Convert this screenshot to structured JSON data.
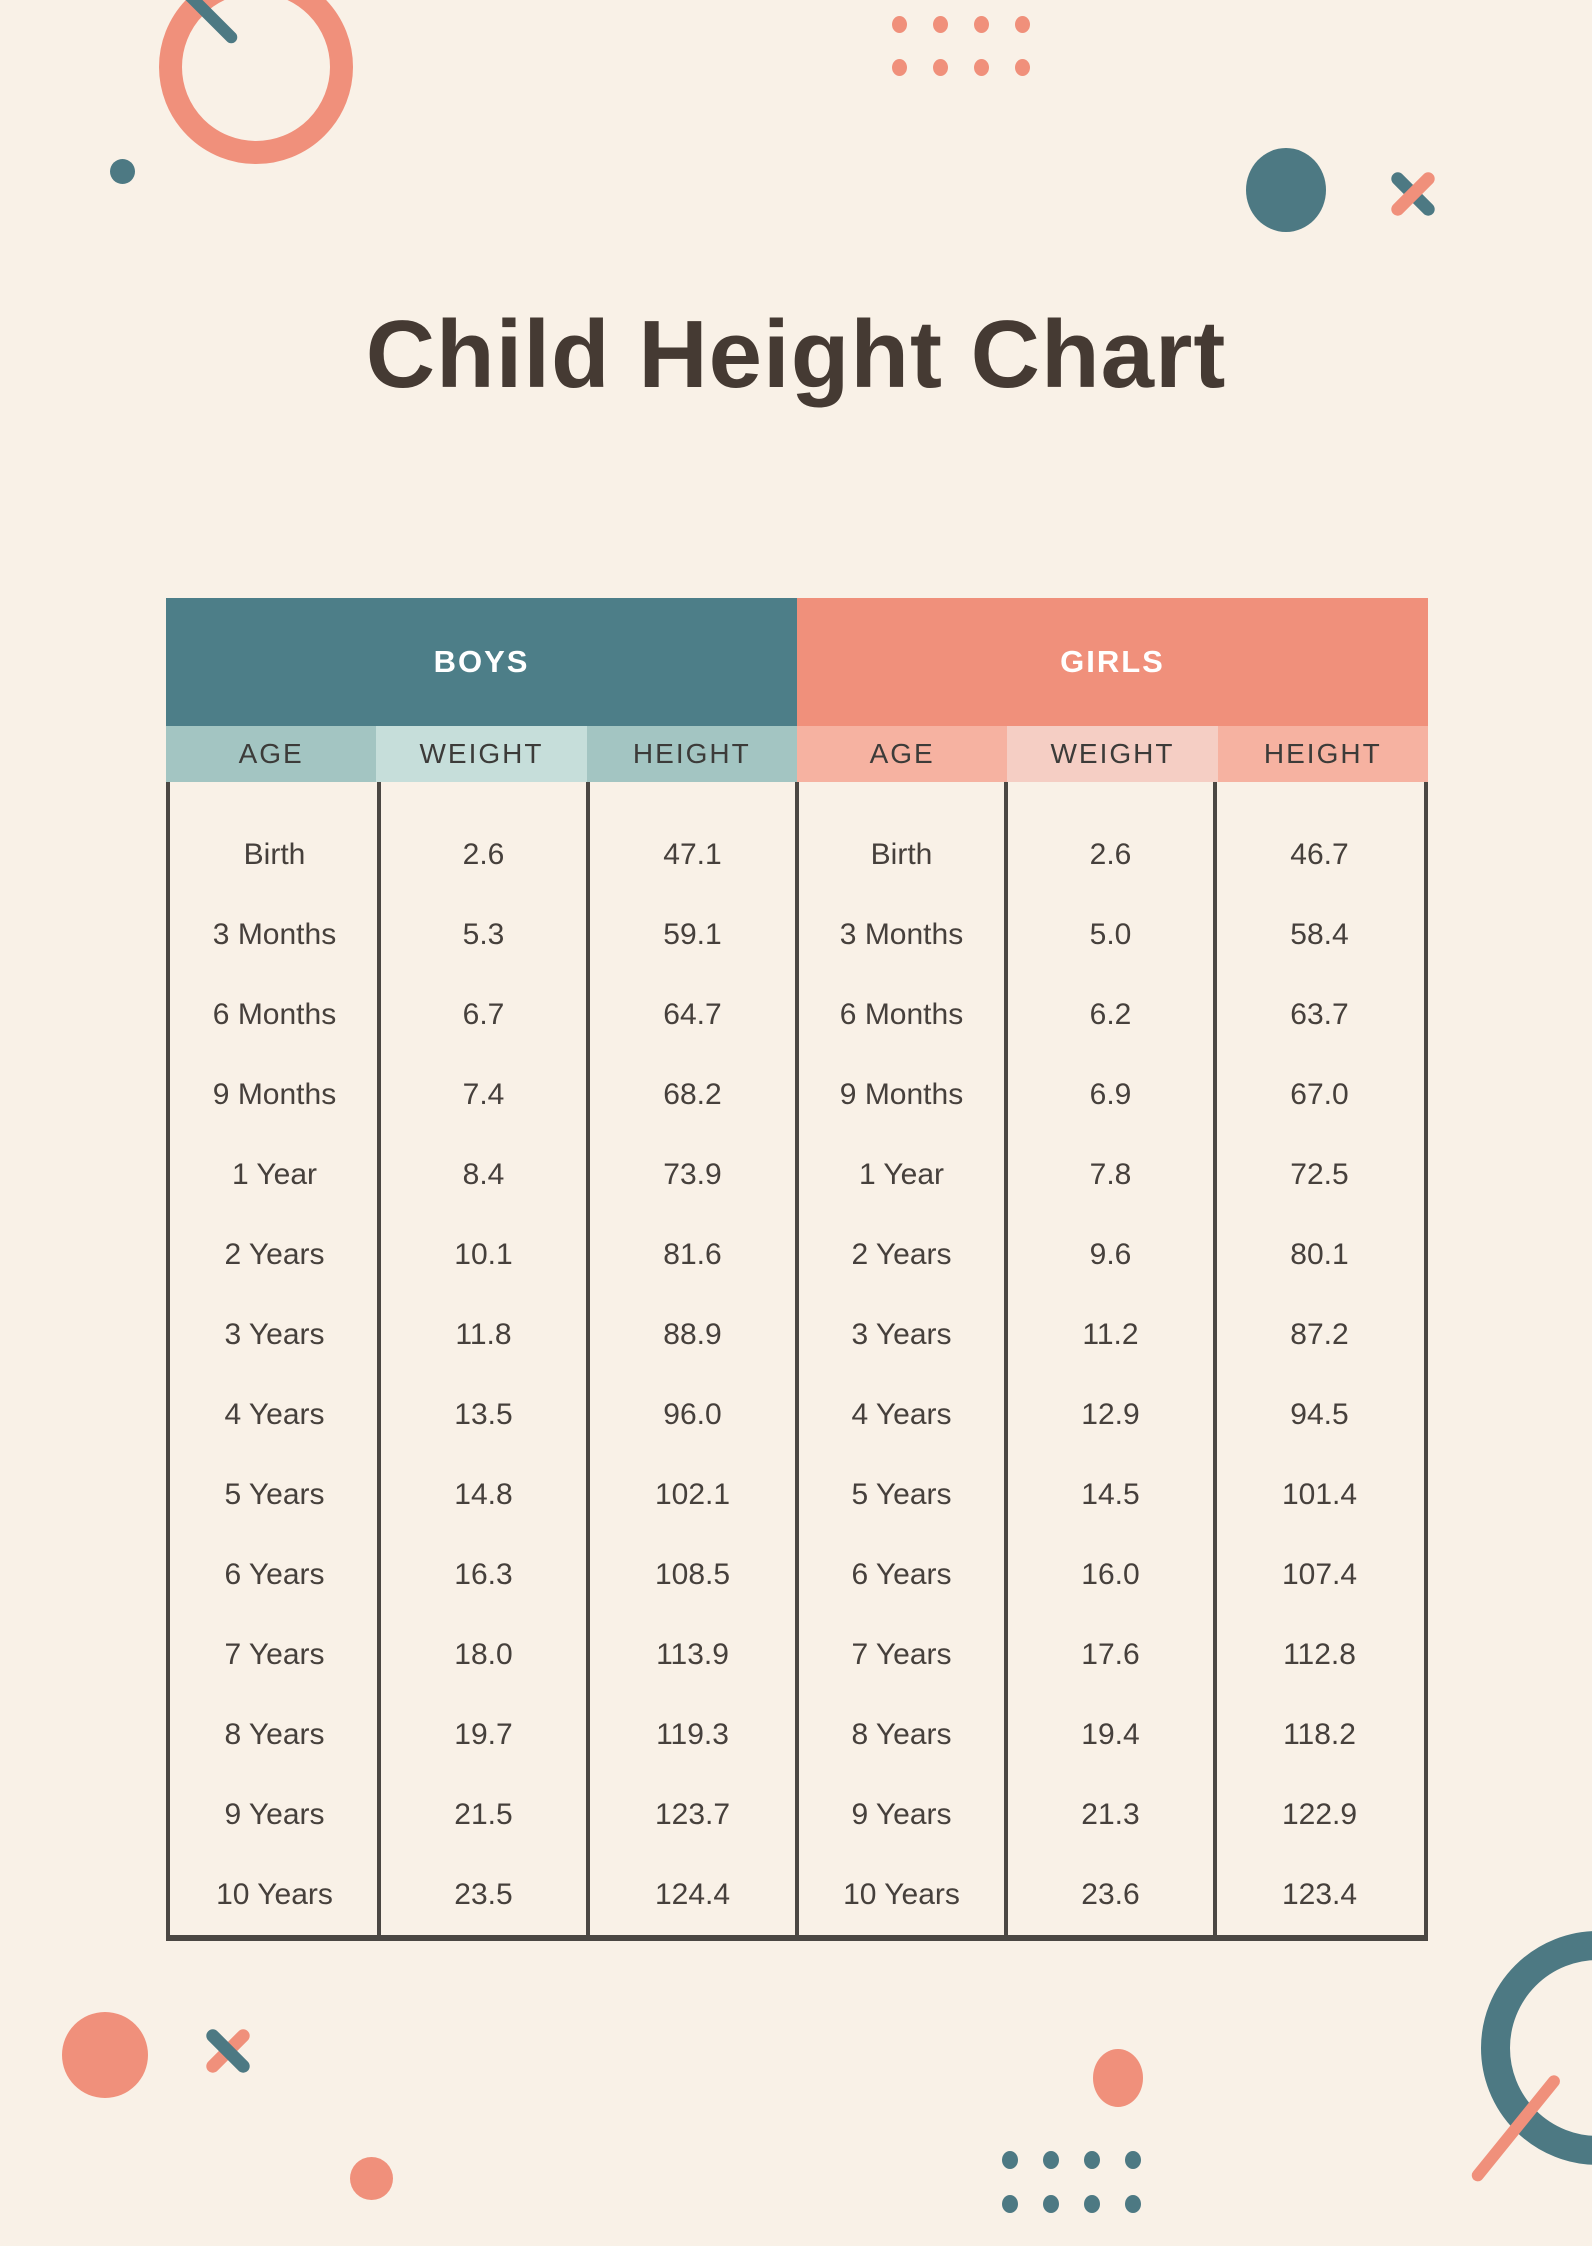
{
  "title": "Child Height Chart",
  "colors": {
    "background": "#F9F1E7",
    "teal_header": "#4D7E88",
    "coral_header": "#F0907B",
    "teal_deco": "#4D7983",
    "teal_sub_medium": "#A3C5C2",
    "teal_sub_light": "#C6DEDA",
    "pink_sub_medium": "#F6B2A1",
    "pink_sub_light": "#F5CEC4",
    "header_text": "#FFFFFF",
    "body_text": "#46403C",
    "title_text": "#453A33",
    "border_dark": "#4B4743"
  },
  "table": {
    "groups": {
      "boys_label": "BOYS",
      "girls_label": "GIRLS"
    },
    "subheader_cells": [
      {
        "label": "AGE",
        "tone": "teal-medium"
      },
      {
        "label": "WEIGHT",
        "tone": "teal-light"
      },
      {
        "label": "HEIGHT",
        "tone": "teal-medium"
      },
      {
        "label": "AGE",
        "tone": "pink-medium"
      },
      {
        "label": "WEIGHT",
        "tone": "pink-light"
      },
      {
        "label": "HEIGHT",
        "tone": "pink-medium"
      }
    ],
    "rows": [
      [
        "Birth",
        "2.6",
        "47.1",
        "Birth",
        "2.6",
        "46.7"
      ],
      [
        "3 Months",
        "5.3",
        "59.1",
        "3 Months",
        "5.0",
        "58.4"
      ],
      [
        "6 Months",
        "6.7",
        "64.7",
        "6 Months",
        "6.2",
        "63.7"
      ],
      [
        "9 Months",
        "7.4",
        "68.2",
        "9 Months",
        "6.9",
        "67.0"
      ],
      [
        "1 Year",
        "8.4",
        "73.9",
        "1 Year",
        "7.8",
        "72.5"
      ],
      [
        "2 Years",
        "10.1",
        "81.6",
        "2 Years",
        "9.6",
        "80.1"
      ],
      [
        "3 Years",
        "11.8",
        "88.9",
        "3 Years",
        "11.2",
        "87.2"
      ],
      [
        "4 Years",
        "13.5",
        "96.0",
        "4 Years",
        "12.9",
        "94.5"
      ],
      [
        "5 Years",
        "14.8",
        "102.1",
        "5 Years",
        "14.5",
        "101.4"
      ],
      [
        "6 Years",
        "16.3",
        "108.5",
        "6 Years",
        "16.0",
        "107.4"
      ],
      [
        "7 Years",
        "18.0",
        "113.9",
        "7 Years",
        "17.6",
        "112.8"
      ],
      [
        "8 Years",
        "19.7",
        "119.3",
        "8 Years",
        "19.4",
        "118.2"
      ],
      [
        "9 Years",
        "21.5",
        "123.7",
        "9 Years",
        "21.3",
        "122.9"
      ],
      [
        "10 Years",
        "23.5",
        "124.4",
        "10 Years",
        "23.6",
        "123.4"
      ]
    ]
  }
}
